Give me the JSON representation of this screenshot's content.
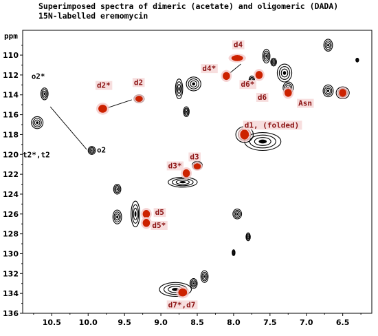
{
  "chart_data": {
    "type": "scatter",
    "title_lines": [
      "Superimposed spectra of dimeric (acetate) and oligomeric (DADA)",
      "15N-labelled eremomycin"
    ],
    "xlabel": "",
    "ylabel": "ppm",
    "xlim": [
      10.9,
      6.1
    ],
    "ylim": [
      136,
      107.5
    ],
    "x_ticks": [
      "10.5",
      "10.0",
      "9.5",
      "9.0",
      "8.5",
      "8.0",
      "7.5",
      "7.0",
      "6.5"
    ],
    "y_ticks": [
      "110",
      "112",
      "114",
      "116",
      "118",
      "120",
      "122",
      "124",
      "126",
      "128",
      "130",
      "132",
      "134",
      "136"
    ],
    "series": [
      {
        "color": "#000000",
        "points": [
          {
            "x": 10.7,
            "y": 116.8,
            "rx": 0.08,
            "ry": 0.6
          },
          {
            "x": 10.6,
            "y": 113.9,
            "rx": 0.05,
            "ry": 0.6
          },
          {
            "x": 9.95,
            "y": 119.6,
            "rx": 0.05,
            "ry": 0.4
          },
          {
            "x": 9.3,
            "y": 114.4,
            "rx": 0.07,
            "ry": 0.4
          },
          {
            "x": 8.75,
            "y": 113.4,
            "rx": 0.05,
            "ry": 1.0
          },
          {
            "x": 8.55,
            "y": 112.9,
            "rx": 0.1,
            "ry": 0.7
          },
          {
            "x": 8.65,
            "y": 115.7,
            "rx": 0.04,
            "ry": 0.5
          },
          {
            "x": 8.5,
            "y": 121.1,
            "rx": 0.07,
            "ry": 0.4
          },
          {
            "x": 8.7,
            "y": 122.8,
            "rx": 0.2,
            "ry": 0.5
          },
          {
            "x": 9.6,
            "y": 123.5,
            "rx": 0.05,
            "ry": 0.5
          },
          {
            "x": 9.6,
            "y": 126.3,
            "rx": 0.06,
            "ry": 0.7
          },
          {
            "x": 9.35,
            "y": 126.0,
            "rx": 0.06,
            "ry": 1.3
          },
          {
            "x": 7.95,
            "y": 126.0,
            "rx": 0.06,
            "ry": 0.5
          },
          {
            "x": 7.8,
            "y": 128.3,
            "rx": 0.03,
            "ry": 0.4
          },
          {
            "x": 8.0,
            "y": 129.9,
            "rx": 0.02,
            "ry": 0.3
          },
          {
            "x": 8.4,
            "y": 132.3,
            "rx": 0.05,
            "ry": 0.6
          },
          {
            "x": 8.55,
            "y": 133.0,
            "rx": 0.05,
            "ry": 0.5
          },
          {
            "x": 8.8,
            "y": 133.6,
            "rx": 0.22,
            "ry": 0.7
          },
          {
            "x": 7.85,
            "y": 118.0,
            "rx": 0.12,
            "ry": 0.8
          },
          {
            "x": 7.6,
            "y": 118.7,
            "rx": 0.25,
            "ry": 0.9
          },
          {
            "x": 7.55,
            "y": 110.1,
            "rx": 0.05,
            "ry": 0.7
          },
          {
            "x": 7.3,
            "y": 111.8,
            "rx": 0.1,
            "ry": 0.9
          },
          {
            "x": 7.45,
            "y": 110.7,
            "rx": 0.04,
            "ry": 0.4
          },
          {
            "x": 7.25,
            "y": 113.3,
            "rx": 0.07,
            "ry": 0.6
          },
          {
            "x": 7.75,
            "y": 112.6,
            "rx": 0.04,
            "ry": 0.5
          },
          {
            "x": 6.7,
            "y": 113.6,
            "rx": 0.07,
            "ry": 0.6
          },
          {
            "x": 6.7,
            "y": 109.0,
            "rx": 0.06,
            "ry": 0.6
          },
          {
            "x": 6.5,
            "y": 113.8,
            "rx": 0.09,
            "ry": 0.6
          },
          {
            "x": 6.3,
            "y": 110.5,
            "rx": 0.02,
            "ry": 0.2
          }
        ]
      },
      {
        "color": "#cc2200",
        "points": [
          {
            "x": 9.8,
            "y": 115.4,
            "rx": 0.06,
            "ry": 0.4
          },
          {
            "x": 9.3,
            "y": 114.4,
            "rx": 0.05,
            "ry": 0.3
          },
          {
            "x": 8.1,
            "y": 112.1,
            "rx": 0.05,
            "ry": 0.4
          },
          {
            "x": 7.95,
            "y": 110.3,
            "rx": 0.08,
            "ry": 0.3
          },
          {
            "x": 7.65,
            "y": 112.0,
            "rx": 0.05,
            "ry": 0.4
          },
          {
            "x": 7.25,
            "y": 113.8,
            "rx": 0.05,
            "ry": 0.4
          },
          {
            "x": 8.5,
            "y": 121.2,
            "rx": 0.05,
            "ry": 0.3
          },
          {
            "x": 8.65,
            "y": 121.9,
            "rx": 0.05,
            "ry": 0.4
          },
          {
            "x": 9.2,
            "y": 126.0,
            "rx": 0.05,
            "ry": 0.4
          },
          {
            "x": 9.2,
            "y": 126.9,
            "rx": 0.05,
            "ry": 0.4
          },
          {
            "x": 7.85,
            "y": 118.0,
            "rx": 0.06,
            "ry": 0.5
          },
          {
            "x": 8.7,
            "y": 133.9,
            "rx": 0.06,
            "ry": 0.4
          },
          {
            "x": 6.5,
            "y": 113.8,
            "rx": 0.05,
            "ry": 0.4
          }
        ]
      }
    ],
    "annotations": [
      {
        "text": "o2*",
        "x": 10.78,
        "y": 112.4,
        "color": "black"
      },
      {
        "text": "o2",
        "x": 9.88,
        "y": 119.8,
        "color": "black"
      },
      {
        "text": "t2*,t2",
        "x": 10.9,
        "y": 120.3,
        "color": "black"
      },
      {
        "text": "d2*",
        "x": 9.88,
        "y": 113.3,
        "color": "red"
      },
      {
        "text": "d2",
        "x": 9.37,
        "y": 113.0,
        "color": "red"
      },
      {
        "text": "d4",
        "x": 8.0,
        "y": 109.2,
        "color": "red"
      },
      {
        "text": "d4*",
        "x": 8.43,
        "y": 111.6,
        "color": "red"
      },
      {
        "text": "d6*",
        "x": 7.9,
        "y": 113.2,
        "color": "red"
      },
      {
        "text": "d6",
        "x": 7.67,
        "y": 114.5,
        "color": "red"
      },
      {
        "text": "Asn",
        "x": 7.11,
        "y": 115.1,
        "color": "red"
      },
      {
        "text": "d1, (folded)",
        "x": 7.85,
        "y": 117.3,
        "color": "red"
      },
      {
        "text": "d3",
        "x": 8.6,
        "y": 120.5,
        "color": "red"
      },
      {
        "text": "d3*",
        "x": 8.9,
        "y": 121.4,
        "color": "red"
      },
      {
        "text": "d5",
        "x": 9.08,
        "y": 126.1,
        "color": "red"
      },
      {
        "text": "d5*",
        "x": 9.12,
        "y": 127.4,
        "color": "red"
      },
      {
        "text": "d7*,d7",
        "x": 8.9,
        "y": 135.4,
        "color": "red"
      }
    ],
    "connectors": [
      {
        "from": [
          10.52,
          115.2
        ],
        "to": [
          10.02,
          119.5
        ]
      },
      {
        "from": [
          9.73,
          115.3
        ],
        "to": [
          9.4,
          114.5
        ]
      },
      {
        "from": [
          8.05,
          111.8
        ],
        "to": [
          7.9,
          110.9
        ]
      }
    ],
    "grid": false
  }
}
